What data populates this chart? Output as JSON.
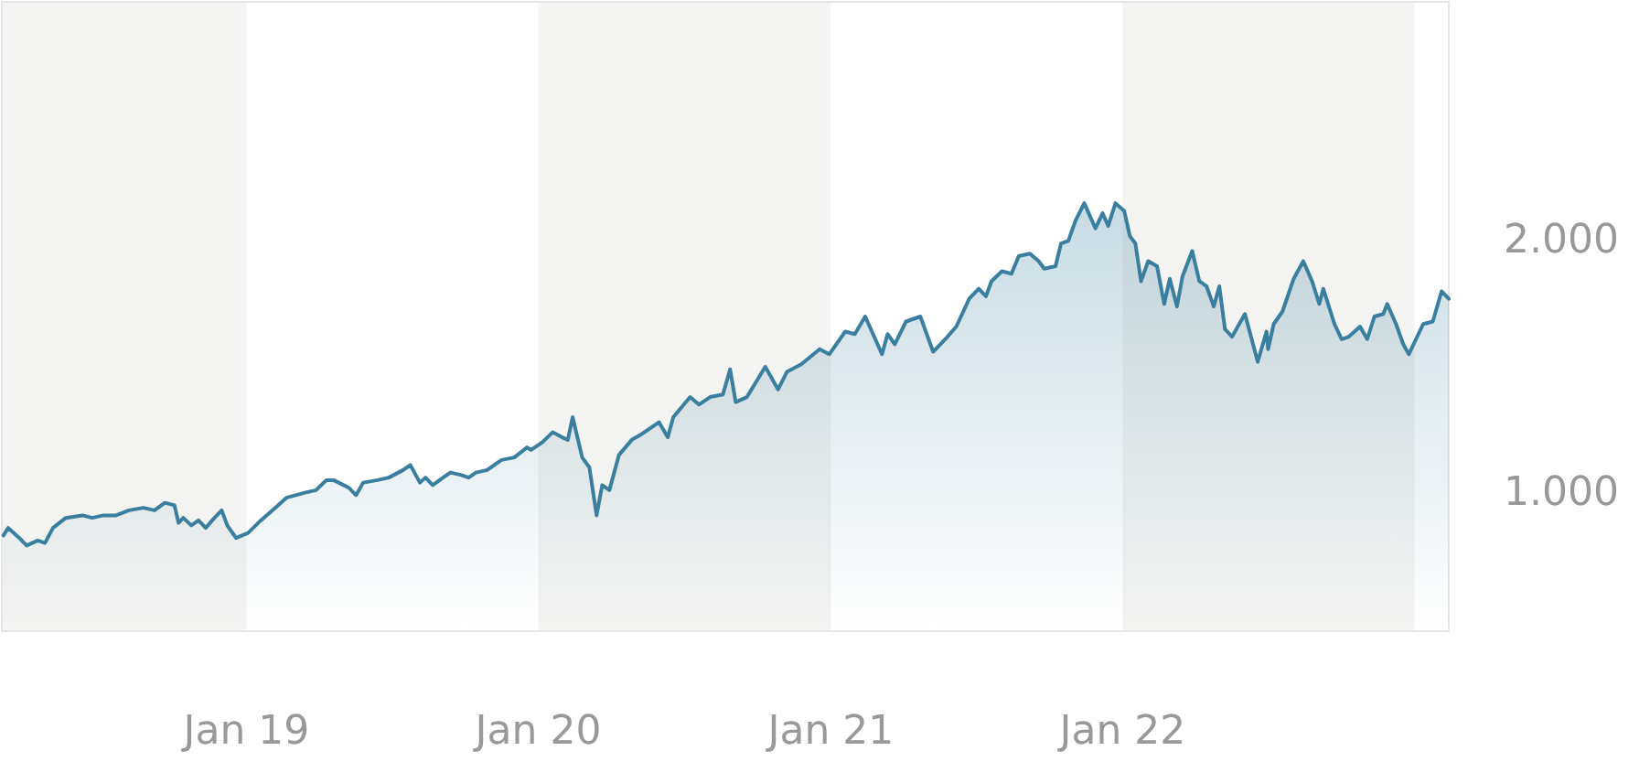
{
  "chart_data": {
    "type": "area",
    "x": [
      "2018-03-03",
      "2018-03-09",
      "2018-03-23",
      "2018-04-01",
      "2018-04-15",
      "2018-04-24",
      "2018-05-04",
      "2018-05-20",
      "2018-06-10",
      "2018-06-22",
      "2018-07-06",
      "2018-07-22",
      "2018-08-07",
      "2018-08-25",
      "2018-09-08",
      "2018-09-21",
      "2018-10-03",
      "2018-10-08",
      "2018-10-14",
      "2018-10-24",
      "2018-11-02",
      "2018-11-11",
      "2018-11-22",
      "2018-12-01",
      "2018-12-08",
      "2018-12-19",
      "2019-01-03",
      "2019-01-19",
      "2019-02-06",
      "2019-02-20",
      "2019-03-15",
      "2019-03-29",
      "2019-04-11",
      "2019-04-20",
      "2019-05-09",
      "2019-05-18",
      "2019-05-27",
      "2019-06-14",
      "2019-06-28",
      "2019-07-16",
      "2019-07-25",
      "2019-08-06",
      "2019-08-13",
      "2019-08-22",
      "2019-09-04",
      "2019-09-13",
      "2019-09-27",
      "2019-10-06",
      "2019-10-15",
      "2019-10-29",
      "2019-11-16",
      "2019-12-02",
      "2019-12-18",
      "2019-12-23",
      "2020-01-06",
      "2020-01-19",
      "2020-01-31",
      "2020-02-07",
      "2020-02-13",
      "2020-02-25",
      "2020-03-05",
      "2020-03-14",
      "2020-03-21",
      "2020-03-30",
      "2020-04-11",
      "2020-04-27",
      "2020-05-08",
      "2020-05-31",
      "2020-06-11",
      "2020-06-18",
      "2020-07-09",
      "2020-07-20",
      "2020-08-03",
      "2020-08-19",
      "2020-08-28",
      "2020-09-04",
      "2020-09-18",
      "2020-10-11",
      "2020-10-27",
      "2020-11-07",
      "2020-11-25",
      "2020-12-18",
      "2020-12-30",
      "2021-01-19",
      "2021-01-31",
      "2021-02-13",
      "2021-03-06",
      "2021-03-13",
      "2021-03-22",
      "2021-04-05",
      "2021-04-23",
      "2021-05-09",
      "2021-05-27",
      "2021-06-07",
      "2021-06-23",
      "2021-07-05",
      "2021-07-14",
      "2021-07-21",
      "2021-08-03",
      "2021-08-15",
      "2021-08-24",
      "2021-09-07",
      "2021-09-18",
      "2021-09-25",
      "2021-10-09",
      "2021-10-16",
      "2021-10-25",
      "2021-11-03",
      "2021-11-14",
      "2021-11-28",
      "2021-12-07",
      "2021-12-14",
      "2021-12-23",
      "2022-01-03",
      "2022-01-10",
      "2022-01-17",
      "2022-01-24",
      "2022-02-02",
      "2022-02-13",
      "2022-02-22",
      "2022-03-01",
      "2022-03-10",
      "2022-03-17",
      "2022-03-29",
      "2022-04-07",
      "2022-04-16",
      "2022-04-25",
      "2022-05-02",
      "2022-05-09",
      "2022-05-18",
      "2022-06-03",
      "2022-06-19",
      "2022-06-30",
      "2022-07-02",
      "2022-07-09",
      "2022-07-20",
      "2022-08-03",
      "2022-08-15",
      "2022-08-26",
      "2022-09-04",
      "2022-09-09",
      "2022-09-23",
      "2022-10-02",
      "2022-10-11",
      "2022-10-25",
      "2022-11-03",
      "2022-11-12",
      "2022-11-23",
      "2022-11-28",
      "2022-12-09",
      "2022-12-18",
      "2022-12-25",
      "2023-01-12",
      "2023-01-24",
      "2023-02-04",
      "2023-02-13"
    ],
    "series": [
      {
        "color": "#3a7f9f",
        "values": [
          830,
          860,
          820,
          790,
          810,
          800,
          860,
          900,
          910,
          900,
          910,
          910,
          930,
          940,
          930,
          960,
          950,
          880,
          900,
          870,
          890,
          860,
          900,
          930,
          870,
          820,
          840,
          890,
          940,
          980,
          1000,
          1010,
          1050,
          1050,
          1020,
          990,
          1040,
          1050,
          1060,
          1090,
          1110,
          1040,
          1060,
          1030,
          1060,
          1080,
          1070,
          1060,
          1080,
          1090,
          1130,
          1140,
          1180,
          1170,
          1200,
          1240,
          1220,
          1210,
          1300,
          1140,
          1100,
          910,
          1030,
          1010,
          1150,
          1210,
          1230,
          1280,
          1220,
          1300,
          1380,
          1350,
          1380,
          1390,
          1490,
          1360,
          1380,
          1500,
          1410,
          1480,
          1510,
          1570,
          1550,
          1640,
          1630,
          1700,
          1550,
          1630,
          1590,
          1680,
          1700,
          1560,
          1620,
          1660,
          1770,
          1810,
          1780,
          1840,
          1880,
          1870,
          1940,
          1950,
          1920,
          1890,
          1900,
          1990,
          2000,
          2080,
          2150,
          2050,
          2110,
          2060,
          2150,
          2120,
          2020,
          1990,
          1840,
          1920,
          1900,
          1750,
          1850,
          1740,
          1860,
          1960,
          1840,
          1820,
          1740,
          1820,
          1650,
          1620,
          1710,
          1520,
          1640,
          1570,
          1670,
          1720,
          1850,
          1920,
          1840,
          1750,
          1810,
          1670,
          1610,
          1620,
          1660,
          1610,
          1700,
          1710,
          1750,
          1670,
          1590,
          1550,
          1670,
          1680,
          1800,
          1770
        ]
      }
    ],
    "xticks": [
      {
        "value": "2019-01-01",
        "label": "Jan 19"
      },
      {
        "value": "2020-01-01",
        "label": "Jan 20"
      },
      {
        "value": "2021-01-01",
        "label": "Jan 21"
      },
      {
        "value": "2022-01-01",
        "label": "Jan 22"
      }
    ],
    "xlim": [
      "2018-03-01",
      "2023-02-13"
    ],
    "ylim": [
      450,
      2950
    ],
    "yticks": [
      {
        "value": 1000,
        "label": "1.000"
      },
      {
        "value": 2000,
        "label": "2.000"
      }
    ],
    "bands": [
      {
        "axis": "x",
        "from": "2018-03-01",
        "to": "2019-01-01",
        "color": "#f4f4f2"
      },
      {
        "axis": "x",
        "from": "2020-01-01",
        "to": "2021-01-01",
        "color": "#f4f4f2"
      },
      {
        "axis": "x",
        "from": "2022-01-01",
        "to": "2023-01-01",
        "color": "#f4f4f2"
      }
    ],
    "grid": false,
    "marker": "none",
    "line_style": "solid"
  }
}
